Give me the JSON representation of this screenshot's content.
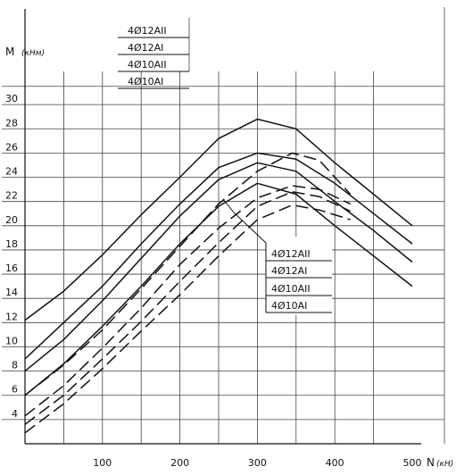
{
  "chart_data": {
    "type": "line",
    "ylabel": "M",
    "yunit": "(кНм)",
    "xlabel": "N",
    "xunit": "(кН)",
    "xlim": [
      0,
      500
    ],
    "ylim": [
      2,
      32
    ],
    "grid": true,
    "x_ticks": [
      "100",
      "200",
      "300",
      "400",
      "500"
    ],
    "y_ticks": [
      "4",
      "6",
      "8",
      "10",
      "12",
      "14",
      "16",
      "18",
      "20",
      "22",
      "24",
      "26",
      "28",
      "30"
    ],
    "legend_top": [
      "4Ø12AII",
      "4Ø12AI",
      "4Ø10AII",
      "4Ø10AI"
    ],
    "legend_callout": [
      "4Ø12AII",
      "4Ø12AI",
      "4Ø10AII",
      "4Ø10AI"
    ],
    "series": [
      {
        "style": "solid",
        "points": [
          [
            0,
            12.2
          ],
          [
            50,
            14.6
          ],
          [
            100,
            17.6
          ],
          [
            150,
            20.9
          ],
          [
            200,
            24
          ],
          [
            250,
            27.2
          ],
          [
            300,
            28.8
          ],
          [
            350,
            28
          ],
          [
            400,
            25.2
          ],
          [
            450,
            22.6
          ],
          [
            500,
            20
          ]
        ]
      },
      {
        "style": "solid",
        "points": [
          [
            0,
            9
          ],
          [
            50,
            12
          ],
          [
            100,
            15
          ],
          [
            150,
            18.5
          ],
          [
            200,
            21.8
          ],
          [
            250,
            24.8
          ],
          [
            300,
            26
          ],
          [
            350,
            25.5
          ],
          [
            400,
            23.5
          ],
          [
            450,
            21
          ],
          [
            500,
            18.5
          ]
        ]
      },
      {
        "style": "solid",
        "points": [
          [
            0,
            8
          ],
          [
            50,
            10.6
          ],
          [
            100,
            13.8
          ],
          [
            150,
            17.3
          ],
          [
            200,
            20.8
          ],
          [
            250,
            23.8
          ],
          [
            300,
            25.2
          ],
          [
            350,
            24.5
          ],
          [
            400,
            22
          ],
          [
            450,
            19.6
          ],
          [
            500,
            17
          ]
        ]
      },
      {
        "style": "solid",
        "points": [
          [
            0,
            6
          ],
          [
            50,
            8.6
          ],
          [
            100,
            11.7
          ],
          [
            150,
            15
          ],
          [
            200,
            18.5
          ],
          [
            250,
            21.6
          ],
          [
            300,
            23.5
          ],
          [
            350,
            22.6
          ],
          [
            400,
            20
          ],
          [
            450,
            17.5
          ],
          [
            500,
            15
          ]
        ]
      },
      {
        "style": "dashed",
        "points": [
          [
            0,
            6
          ],
          [
            50,
            8.5
          ],
          [
            100,
            11.4
          ],
          [
            150,
            14.8
          ],
          [
            200,
            18.3
          ],
          [
            250,
            21.8
          ],
          [
            300,
            24.5
          ],
          [
            345,
            26
          ],
          [
            380,
            25.4
          ],
          [
            420,
            22.6
          ]
        ]
      },
      {
        "style": "dashed",
        "points": [
          [
            0,
            4.3
          ],
          [
            50,
            6.8
          ],
          [
            100,
            9.9
          ],
          [
            150,
            13.2
          ],
          [
            200,
            16.8
          ],
          [
            250,
            19.8
          ],
          [
            300,
            22.3
          ],
          [
            345,
            23.3
          ],
          [
            380,
            23
          ],
          [
            420,
            21.8
          ]
        ]
      },
      {
        "style": "dashed",
        "points": [
          [
            0,
            3.6
          ],
          [
            50,
            6
          ],
          [
            100,
            9
          ],
          [
            150,
            12.1
          ],
          [
            200,
            15.4
          ],
          [
            250,
            18.6
          ],
          [
            300,
            21.6
          ],
          [
            345,
            22.8
          ],
          [
            380,
            22.4
          ],
          [
            420,
            21.2
          ]
        ]
      },
      {
        "style": "dashed",
        "points": [
          [
            0,
            2.9
          ],
          [
            50,
            5.3
          ],
          [
            100,
            8.2
          ],
          [
            150,
            11.3
          ],
          [
            200,
            14.3
          ],
          [
            250,
            17.5
          ],
          [
            300,
            20.5
          ],
          [
            345,
            21.7
          ],
          [
            380,
            21.3
          ],
          [
            420,
            20.5
          ]
        ]
      }
    ]
  }
}
